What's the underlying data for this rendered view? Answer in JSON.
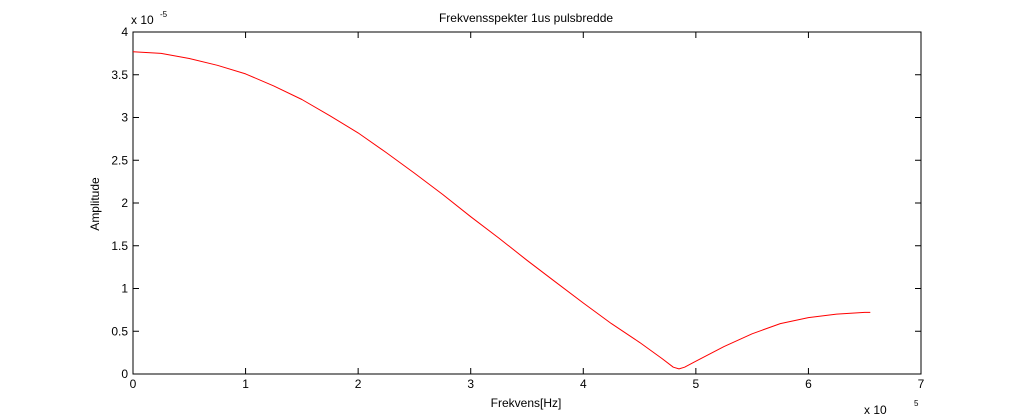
{
  "chart_data": {
    "type": "line",
    "title": "Frekvensspekter 1us pulsbredde",
    "xlabel": "Frekvens[Hz]",
    "ylabel": "Amplitude",
    "x_multiplier": {
      "base": "x 10",
      "exponent": "5"
    },
    "y_multiplier": {
      "base": "x 10",
      "exponent": "-5"
    },
    "xlim": [
      0,
      7
    ],
    "ylim": [
      0,
      4
    ],
    "xticks": [
      "0",
      "1",
      "2",
      "3",
      "4",
      "5",
      "6",
      "7"
    ],
    "yticks": [
      "0",
      "0.5",
      "1",
      "1.5",
      "2",
      "2.5",
      "3",
      "3.5",
      "4"
    ],
    "grid": false,
    "series": [
      {
        "color": "#ff0000",
        "x": [
          0,
          0.25,
          0.5,
          0.75,
          1.0,
          1.25,
          1.5,
          1.75,
          2.0,
          2.25,
          2.5,
          2.75,
          3.0,
          3.25,
          3.5,
          3.75,
          4.0,
          4.25,
          4.5,
          4.7,
          4.8,
          4.85,
          4.9,
          5.0,
          5.25,
          5.5,
          5.75,
          6.0,
          6.25,
          6.5,
          6.55
        ],
        "y": [
          3.77,
          3.75,
          3.69,
          3.61,
          3.51,
          3.37,
          3.21,
          3.02,
          2.82,
          2.59,
          2.35,
          2.1,
          1.84,
          1.59,
          1.33,
          1.08,
          0.83,
          0.59,
          0.37,
          0.18,
          0.08,
          0.06,
          0.08,
          0.15,
          0.32,
          0.47,
          0.59,
          0.66,
          0.7,
          0.72,
          0.72
        ]
      }
    ]
  }
}
